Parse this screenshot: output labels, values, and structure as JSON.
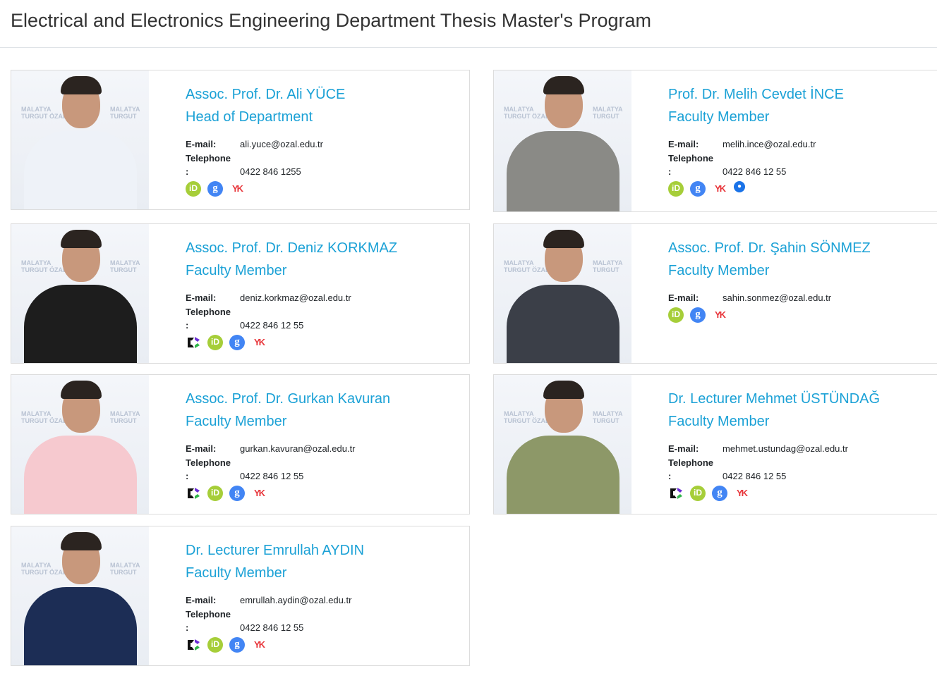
{
  "page_title": "Electrical and Electronics Engineering Department Thesis Master's Program",
  "labels": {
    "email": "E-mail:",
    "telephone": "Telephone",
    ":": ":"
  },
  "people": [
    {
      "name": "Assoc. Prof. Dr. Ali YÜCE",
      "role": "Head of Department",
      "email": "ali.yuce@ozal.edu.tr",
      "phone": "0422 846 1255",
      "icons": [
        "orcid-icon",
        "google-scholar-icon",
        "yok-icon"
      ],
      "shirt": "#eef2f8"
    },
    {
      "name": "Prof. Dr. Melih Cevdet İNCE",
      "role": "Faculty Member",
      "email": "melih.ince@ozal.edu.tr",
      "phone": "0422 846 12 55",
      "icons": [
        "orcid-icon",
        "google-scholar-icon",
        "yok-icon",
        "website-icon"
      ],
      "shirt": "#8a8a86"
    },
    {
      "name": "Assoc. Prof. Dr. Deniz KORKMAZ",
      "role": "Faculty Member",
      "email": "deniz.korkmaz@ozal.edu.tr",
      "phone": "0422 846 12 55",
      "icons": [
        "avesis-icon",
        "orcid-icon",
        "google-scholar-icon",
        "yok-icon"
      ],
      "shirt": "#1d1d1d"
    },
    {
      "name": "Assoc. Prof. Dr. Şahin SÖNMEZ",
      "role": "Faculty Member",
      "email": "sahin.sonmez@ozal.edu.tr",
      "phone": null,
      "icons": [
        "orcid-icon",
        "google-scholar-icon",
        "yok-icon"
      ],
      "shirt": "#3b3f48"
    },
    {
      "name": "Assoc. Prof. Dr. Gurkan Kavuran",
      "role": "Faculty Member",
      "email": "gurkan.kavuran@ozal.edu.tr",
      "phone": "0422 846 12 55",
      "icons": [
        "avesis-icon",
        "orcid-icon",
        "google-scholar-icon",
        "yok-icon"
      ],
      "shirt": "#f6c9cf"
    },
    {
      "name": "Dr. Lecturer Mehmet ÜSTÜNDAĞ",
      "role": "Faculty Member",
      "email": "mehmet.ustundag@ozal.edu.tr",
      "phone": "0422 846 12 55",
      "icons": [
        "avesis-icon",
        "orcid-icon",
        "google-scholar-icon",
        "yok-icon"
      ],
      "shirt": "#8d9868"
    },
    {
      "name": "Dr. Lecturer Emrullah AYDIN",
      "role": "Faculty Member",
      "email": "emrullah.aydin@ozal.edu.tr",
      "phone": "0422 846 12 55",
      "icons": [
        "avesis-icon",
        "orcid-icon",
        "google-scholar-icon",
        "yok-icon"
      ],
      "shirt": "#1c2d55"
    }
  ],
  "watermark": "MALATYA TURGUT ÖZAL ÜNİVERSİTESİ"
}
